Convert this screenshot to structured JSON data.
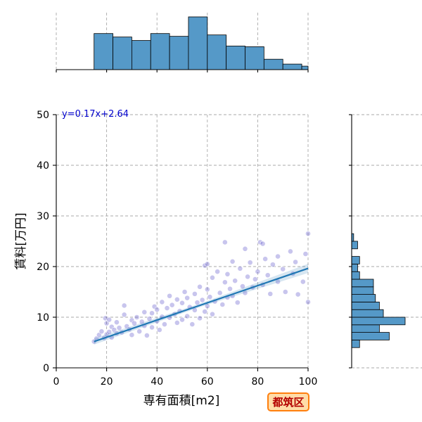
{
  "badge": {
    "label": "都筑区"
  },
  "colors": {
    "scatter": "#3a2fc0",
    "regression": "#1f77b4",
    "hist_fill": "#5599c8",
    "badge_text": "#b30000",
    "badge_border": "#ff7f0e",
    "badge_bg": "#ffdca8",
    "equation": "#0000cc"
  },
  "chart_data": {
    "type": "scatter",
    "xlabel": "専有面積[m2]",
    "ylabel": "賃料[万円]",
    "xlim": [
      0,
      100
    ],
    "ylim": [
      0,
      50
    ],
    "xticks": [
      0,
      20,
      40,
      60,
      80,
      100
    ],
    "yticks": [
      0,
      10,
      20,
      30,
      40,
      50
    ],
    "grid": true,
    "regression": {
      "equation": "y=0.17x+2.64",
      "slope": 0.17,
      "intercept": 2.64,
      "x_range": [
        15,
        100
      ]
    },
    "points": [
      [
        15,
        5.2
      ],
      [
        16,
        5.8
      ],
      [
        17,
        6.5
      ],
      [
        18,
        7.2
      ],
      [
        19,
        5.9
      ],
      [
        19.5,
        9.8
      ],
      [
        20,
        6.6
      ],
      [
        20,
        8.8
      ],
      [
        21,
        7.1
      ],
      [
        21,
        9.5
      ],
      [
        22,
        6.0
      ],
      [
        22,
        8.1
      ],
      [
        23,
        7.5
      ],
      [
        24,
        6.8
      ],
      [
        24,
        9.0
      ],
      [
        25,
        7.9
      ],
      [
        26,
        7.0
      ],
      [
        27,
        10.5
      ],
      [
        27,
        12.3
      ],
      [
        28,
        8.2
      ],
      [
        29,
        7.6
      ],
      [
        30,
        9.4
      ],
      [
        30,
        6.5
      ],
      [
        31,
        8.8
      ],
      [
        32,
        10.0
      ],
      [
        33,
        7.2
      ],
      [
        34,
        9.1
      ],
      [
        35,
        11.0
      ],
      [
        35,
        8.3
      ],
      [
        36,
        6.4
      ],
      [
        37,
        9.7
      ],
      [
        38,
        10.8
      ],
      [
        38,
        8.0
      ],
      [
        39,
        12.1
      ],
      [
        40,
        9.2
      ],
      [
        40,
        11.5
      ],
      [
        41,
        7.5
      ],
      [
        42,
        10.1
      ],
      [
        42,
        13.0
      ],
      [
        43,
        8.6
      ],
      [
        44,
        11.8
      ],
      [
        45,
        9.9
      ],
      [
        45,
        14.2
      ],
      [
        46,
        12.4
      ],
      [
        47,
        10.6
      ],
      [
        48,
        8.9
      ],
      [
        48,
        13.5
      ],
      [
        49,
        11.2
      ],
      [
        50,
        12.8
      ],
      [
        50,
        9.5
      ],
      [
        51,
        15.0
      ],
      [
        52,
        10.2
      ],
      [
        52,
        13.8
      ],
      [
        53,
        12.0
      ],
      [
        54,
        8.6
      ],
      [
        55,
        14.6
      ],
      [
        55,
        11.4
      ],
      [
        56,
        12.9
      ],
      [
        57,
        16.0
      ],
      [
        57,
        9.8
      ],
      [
        58,
        13.4
      ],
      [
        59,
        20.2
      ],
      [
        59,
        11.1
      ],
      [
        60,
        15.5
      ],
      [
        60,
        12.2
      ],
      [
        61,
        14.0
      ],
      [
        62,
        17.8
      ],
      [
        62,
        10.6
      ],
      [
        63,
        13.1
      ],
      [
        64,
        19.0
      ],
      [
        65,
        14.8
      ],
      [
        66,
        12.5
      ],
      [
        67,
        16.9
      ],
      [
        68,
        18.5
      ],
      [
        68,
        13.9
      ],
      [
        69,
        15.6
      ],
      [
        70,
        21.0
      ],
      [
        70,
        14.2
      ],
      [
        71,
        17.2
      ],
      [
        72,
        12.9
      ],
      [
        73,
        19.6
      ],
      [
        74,
        16.1
      ],
      [
        75,
        23.5
      ],
      [
        75,
        14.8
      ],
      [
        76,
        18.0
      ],
      [
        77,
        20.8
      ],
      [
        78,
        15.9
      ],
      [
        79,
        17.5
      ],
      [
        80,
        19.0
      ],
      [
        81,
        24.8
      ],
      [
        82,
        16.4
      ],
      [
        83,
        21.5
      ],
      [
        84,
        18.3
      ],
      [
        85,
        14.6
      ],
      [
        86,
        20.4
      ],
      [
        88,
        22.0
      ],
      [
        88,
        17.0
      ],
      [
        90,
        19.5
      ],
      [
        91,
        15.0
      ],
      [
        93,
        23.0
      ],
      [
        94,
        18.6
      ],
      [
        95,
        20.9
      ],
      [
        96,
        14.5
      ],
      [
        98,
        17.0
      ],
      [
        99,
        22.5
      ],
      [
        100,
        26.5
      ],
      [
        100,
        13.0
      ],
      [
        67,
        24.8
      ],
      [
        82,
        24.5
      ],
      [
        60,
        20.5
      ]
    ],
    "top_hist": {
      "bin_edges": [
        15,
        22.5,
        30,
        37.5,
        45,
        52.5,
        60,
        67.5,
        75,
        82.5,
        90,
        97.5,
        100
      ],
      "counts": [
        52,
        47,
        42,
        52,
        48,
        76,
        50,
        34,
        33,
        15,
        8,
        5
      ]
    },
    "right_hist": {
      "bin_edges": [
        4,
        5.5,
        7,
        8.5,
        10,
        11.5,
        13,
        14.5,
        16,
        17.5,
        19,
        20.5,
        22,
        23.5,
        25,
        26.5
      ],
      "counts": [
        4,
        19,
        14,
        27,
        16,
        14,
        12,
        11,
        11,
        4,
        3,
        4,
        0,
        3,
        1
      ]
    }
  }
}
